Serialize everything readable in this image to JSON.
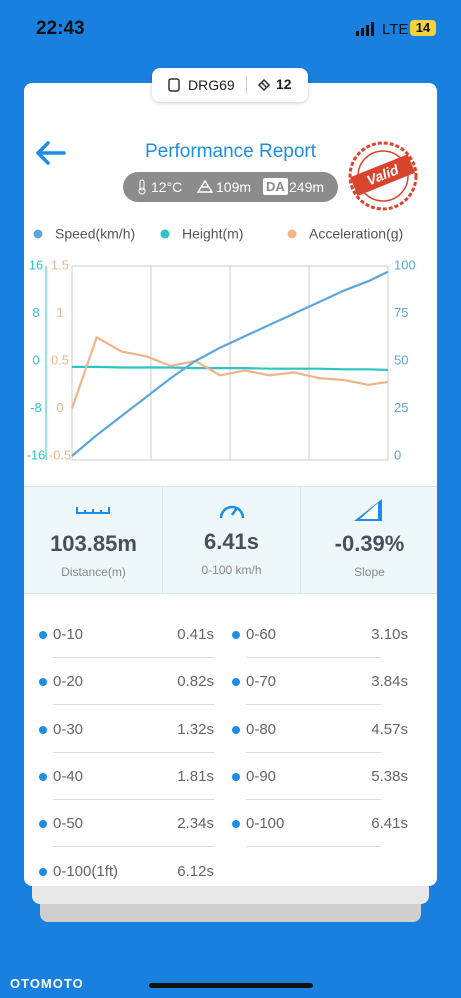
{
  "status_bar": {
    "time": "22:43",
    "network": "LTE",
    "battery": "14"
  },
  "device": {
    "name": "DRG69",
    "satellites": "12"
  },
  "header": {
    "title": "Performance Report",
    "stamp": "Valid"
  },
  "conditions": {
    "temperature": "12°C",
    "altitude": "109m",
    "da_label": "DA",
    "density_altitude": "249m"
  },
  "chart_data": {
    "type": "line",
    "x": [
      0,
      0.5,
      1,
      1.5,
      2,
      2.5,
      3,
      3.5,
      4,
      4.5,
      5,
      5.5,
      6,
      6.4
    ],
    "xlim": [
      0,
      6.4
    ],
    "xticks": [
      0,
      1.6,
      3.2,
      4.8,
      6.4
    ],
    "grid": "vertical",
    "ylim": [
      0,
      100
    ],
    "yticks": [
      100,
      75,
      50,
      25,
      0
    ],
    "y2lim": [
      -16,
      16
    ],
    "y2ticks": [
      16,
      8,
      0,
      -8,
      -16
    ],
    "y3lim": [
      -0.5,
      1.5
    ],
    "y3ticks": [
      1.5,
      1,
      0.5,
      0,
      -0.5
    ],
    "series": [
      {
        "name": "Speed(km/h)",
        "color": "#5aa6e0",
        "values": [
          0,
          11,
          21,
          31,
          41,
          50,
          57,
          63,
          69,
          75,
          81,
          87,
          92,
          97
        ]
      },
      {
        "name": "Height(m)",
        "color": "#2ec4c4",
        "axis": "y2",
        "values": [
          -1,
          -1,
          -1.1,
          -1.1,
          -1.1,
          -1.2,
          -1.2,
          -1.2,
          -1.3,
          -1.3,
          -1.3,
          -1.4,
          -1.4,
          -1.5
        ]
      },
      {
        "name": "Acceleration(g)",
        "color": "#f0b48a",
        "axis": "y3",
        "values": [
          0,
          0.75,
          0.6,
          0.55,
          0.45,
          0.5,
          0.35,
          0.4,
          0.35,
          0.38,
          0.32,
          0.3,
          0.25,
          0.28
        ]
      }
    ]
  },
  "stats": [
    {
      "value": "103.85m",
      "label": "Distance(m)"
    },
    {
      "value": "6.41s",
      "label": "0-100 km/h"
    },
    {
      "value": "-0.39%",
      "label": "Slope"
    }
  ],
  "splits": [
    {
      "label": "0-10",
      "time": "0.41s"
    },
    {
      "label": "0-60",
      "time": "3.10s"
    },
    {
      "label": "0-20",
      "time": "0.82s"
    },
    {
      "label": "0-70",
      "time": "3.84s"
    },
    {
      "label": "0-30",
      "time": "1.32s"
    },
    {
      "label": "0-80",
      "time": "4.57s"
    },
    {
      "label": "0-40",
      "time": "1.81s"
    },
    {
      "label": "0-90",
      "time": "5.38s"
    },
    {
      "label": "0-50",
      "time": "2.34s"
    },
    {
      "label": "0-100",
      "time": "6.41s"
    },
    {
      "label": "0-100(1ft)",
      "time": "6.12s"
    }
  ],
  "watermark": "OTOMOTO"
}
